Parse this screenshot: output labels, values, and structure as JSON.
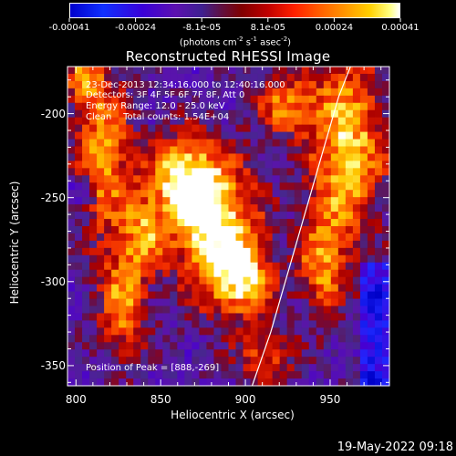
{
  "colorbar": {
    "ticks": [
      "-0.00041",
      "-0.00024",
      "-8.1e-05",
      "8.1e-05",
      "0.00024",
      "0.00041"
    ],
    "units": "(photons cm  s  asec  )",
    "units_parts": [
      "(photons cm",
      "-2",
      " s",
      "-1",
      " asec",
      "-2",
      ")"
    ]
  },
  "info": {
    "line1": "23-Dec-2013 12:34:16.000 to 12:40:16.000",
    "line2": "Detectors: 3F 4F 5F 6F 7F 8F, Att 0",
    "line3": "Energy Range: 12.0 - 25.0 keV",
    "line4": "Clean    Total counts: 1.54E+04",
    "peak": "Position of Peak = [888,-269]"
  },
  "timestamp": "19-May-2022 09:18",
  "chart_data": {
    "type": "heatmap",
    "title": "Reconstructed RHESSI Image",
    "xlabel": "Heliocentric X (arcsec)",
    "ylabel": "Heliocentric Y (arcsec)",
    "xlim": [
      795,
      985
    ],
    "ylim": [
      -362,
      -172
    ],
    "x_ticks": [
      800,
      850,
      900,
      950
    ],
    "y_ticks": [
      -350,
      -300,
      -250,
      -200
    ],
    "x_tick_labels": [
      "800",
      "850",
      "900",
      "950"
    ],
    "y_tick_labels": [
      "-350",
      "-300",
      "-250",
      "-200"
    ],
    "colorbar_range": [
      -0.00041,
      0.00041
    ],
    "peak_position": [
      888,
      -269
    ],
    "limb_curve": {
      "x": [
        904,
        915,
        925,
        935,
        945,
        955,
        962
      ],
      "y": [
        -362,
        -330,
        -295,
        -260,
        -225,
        -190,
        -172
      ]
    },
    "bright_regions": [
      {
        "x": 882,
        "y": -268,
        "sx": 18,
        "sy": 30,
        "amp": 1.0
      },
      {
        "x": 862,
        "y": -240,
        "sx": 14,
        "sy": 18,
        "amp": 0.8
      },
      {
        "x": 900,
        "y": -300,
        "sx": 12,
        "sy": 15,
        "amp": 0.7
      },
      {
        "x": 816,
        "y": -225,
        "sx": 12,
        "sy": 32,
        "amp": 0.75
      },
      {
        "x": 828,
        "y": -310,
        "sx": 10,
        "sy": 25,
        "amp": 0.7
      },
      {
        "x": 960,
        "y": -220,
        "sx": 16,
        "sy": 40,
        "amp": 0.85
      },
      {
        "x": 945,
        "y": -290,
        "sx": 10,
        "sy": 22,
        "amp": 0.6
      },
      {
        "x": 925,
        "y": -195,
        "sx": 12,
        "sy": 12,
        "amp": 0.65
      },
      {
        "x": 840,
        "y": -270,
        "sx": 8,
        "sy": 15,
        "amp": 0.55
      },
      {
        "x": 912,
        "y": -345,
        "sx": 12,
        "sy": 10,
        "amp": 0.55
      },
      {
        "x": 805,
        "y": -180,
        "sx": 8,
        "sy": 10,
        "amp": 0.6
      }
    ]
  }
}
